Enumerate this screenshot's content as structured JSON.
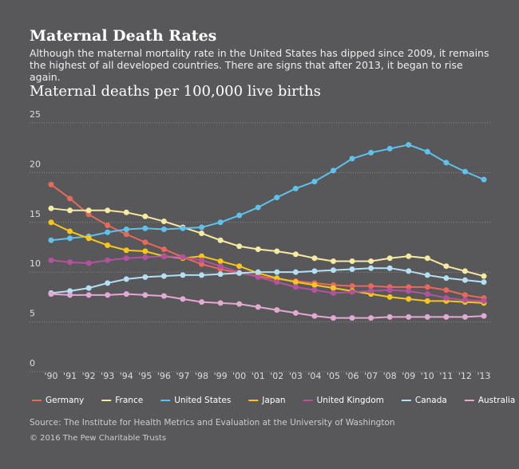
{
  "chart_data": {
    "type": "line",
    "title": "Maternal Death Rates",
    "subtitle": "Although the maternal mortality rate in the United States has dipped since 2009, it remains the highest of all developed countries. There are signs that after 2013, it began to rise again.",
    "y_label": "Maternal deaths per 100,000 live births",
    "categories": [
      "'90",
      "'91",
      "'92",
      "'93",
      "'94",
      "'95",
      "'96",
      "'97",
      "'98",
      "'99",
      "'00",
      "'01",
      "'02",
      "'03",
      "'04",
      "'05",
      "'06",
      "'07",
      "'08",
      "'09",
      "'10",
      "'11",
      "'12",
      "'13"
    ],
    "ylim": [
      0,
      25
    ],
    "yticks": [
      0,
      5,
      10,
      15,
      20,
      25
    ],
    "grid": true,
    "series": [
      {
        "name": "Germany",
        "color": "#e8695b",
        "values": [
          18.0,
          16.6,
          15.0,
          13.9,
          13.0,
          12.2,
          11.5,
          10.7,
          10.0,
          9.5,
          9.1,
          8.8,
          8.5,
          8.3,
          8.1,
          7.9,
          7.8,
          7.8,
          7.7,
          7.7,
          7.7,
          7.4,
          6.9,
          6.6
        ]
      },
      {
        "name": "France",
        "color": "#f6e9a2",
        "values": [
          15.6,
          15.4,
          15.4,
          15.4,
          15.2,
          14.8,
          14.3,
          13.7,
          13.1,
          12.4,
          11.8,
          11.5,
          11.3,
          11.0,
          10.6,
          10.3,
          10.3,
          10.3,
          10.6,
          10.8,
          10.6,
          9.8,
          9.3,
          8.8
        ]
      },
      {
        "name": "United States",
        "color": "#5ec2ec",
        "values": [
          12.4,
          12.6,
          12.8,
          13.2,
          13.5,
          13.6,
          13.5,
          13.6,
          13.7,
          14.2,
          14.9,
          15.7,
          16.7,
          17.6,
          18.3,
          19.4,
          20.6,
          21.2,
          21.6,
          22.0,
          21.3,
          20.2,
          19.3,
          18.5
        ]
      },
      {
        "name": "Japan",
        "color": "#f7c61a",
        "values": [
          14.2,
          13.3,
          12.6,
          11.9,
          11.4,
          11.3,
          10.8,
          10.6,
          10.8,
          10.3,
          9.8,
          9.1,
          8.6,
          8.2,
          7.9,
          7.6,
          7.3,
          7.0,
          6.7,
          6.5,
          6.3,
          6.3,
          6.2,
          6.1
        ]
      },
      {
        "name": "United Kingdom",
        "color": "#b5529f",
        "values": [
          10.4,
          10.2,
          10.1,
          10.4,
          10.6,
          10.7,
          10.8,
          10.7,
          10.4,
          9.8,
          9.2,
          8.7,
          8.2,
          7.7,
          7.4,
          7.1,
          7.2,
          7.3,
          7.4,
          7.3,
          7.0,
          6.6,
          6.4,
          6.3
        ]
      },
      {
        "name": "Canada",
        "color": "#b4e0f3",
        "values": [
          7.1,
          7.3,
          7.6,
          8.1,
          8.5,
          8.7,
          8.8,
          8.9,
          8.9,
          9.0,
          9.1,
          9.2,
          9.2,
          9.2,
          9.3,
          9.4,
          9.5,
          9.6,
          9.6,
          9.3,
          8.9,
          8.6,
          8.4,
          8.2
        ]
      },
      {
        "name": "Australia",
        "color": "#e2a9d2",
        "values": [
          7.0,
          6.9,
          6.9,
          6.9,
          7.0,
          6.9,
          6.8,
          6.5,
          6.2,
          6.1,
          6.0,
          5.7,
          5.4,
          5.1,
          4.8,
          4.6,
          4.6,
          4.6,
          4.7,
          4.7,
          4.7,
          4.7,
          4.7,
          4.8
        ]
      }
    ],
    "source": "Source: The Institute for Health Metrics and Evaluation at the University of Washington",
    "copyright": "© 2016 The Pew Charitable Trusts"
  }
}
